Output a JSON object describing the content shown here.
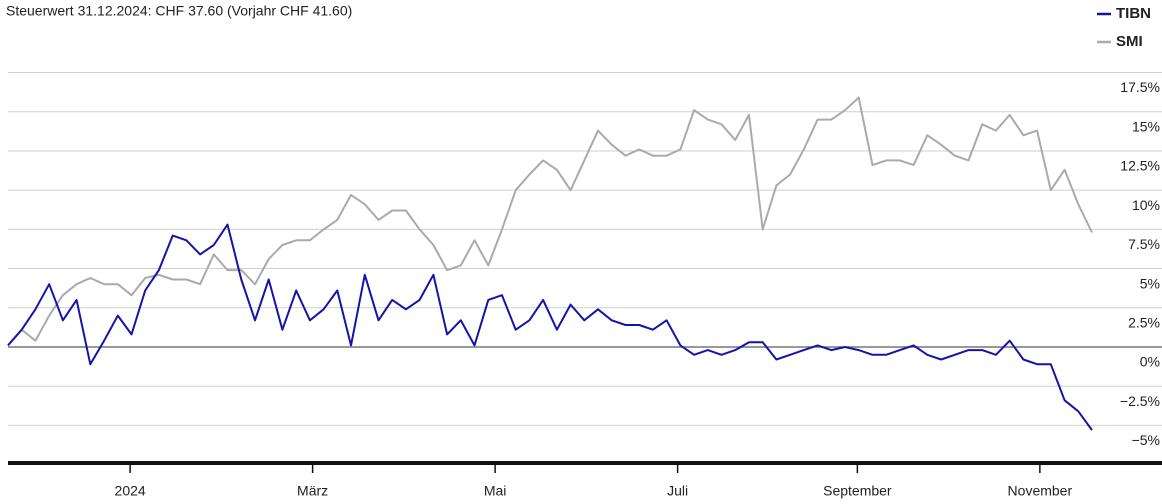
{
  "chart_data": {
    "type": "line",
    "title": "Steuerwert 31.12.2024: CHF 37.60 (Vorjahr CHF 41.60)",
    "xlim": [
      0,
      79
    ],
    "xticks": [
      {
        "value": 8.9,
        "label": "2024"
      },
      {
        "value": 22.2,
        "label": "März"
      },
      {
        "value": 35.5,
        "label": "Mai"
      },
      {
        "value": 48.8,
        "label": "Juli"
      },
      {
        "value": 61.9,
        "label": "September"
      },
      {
        "value": 75.2,
        "label": "November"
      }
    ],
    "ylim": [
      -7.4,
      18.3
    ],
    "yticks": [
      {
        "value": -5,
        "label": "−5%"
      },
      {
        "value": -2.5,
        "label": "−2.5%"
      },
      {
        "value": 0,
        "label": "0%"
      },
      {
        "value": 2.5,
        "label": "2.5%"
      },
      {
        "value": 5,
        "label": "5%"
      },
      {
        "value": 7.5,
        "label": "7.5%"
      },
      {
        "value": 10,
        "label": "10%"
      },
      {
        "value": 12.5,
        "label": "12.5%"
      },
      {
        "value": 15,
        "label": "15%"
      },
      {
        "value": 17.5,
        "label": "17.5%"
      }
    ],
    "grid": true,
    "legend": "top-right",
    "series": [
      {
        "name": "TIBN",
        "color": "#1414a8",
        "values": [
          0.1,
          1.1,
          2.4,
          4.0,
          1.7,
          3.0,
          -1.1,
          0.4,
          2.0,
          0.8,
          3.6,
          4.9,
          7.1,
          6.8,
          5.9,
          6.5,
          7.8,
          4.3,
          1.7,
          4.3,
          1.1,
          3.6,
          1.7,
          2.4,
          3.6,
          0.1,
          4.6,
          1.7,
          3.0,
          2.4,
          3.0,
          4.6,
          0.8,
          1.7,
          0.1,
          3.0,
          3.3,
          1.1,
          1.7,
          3.0,
          1.1,
          2.7,
          1.7,
          2.4,
          1.7,
          1.4,
          1.4,
          1.1,
          1.7,
          0.1,
          -0.5,
          -0.2,
          -0.5,
          -0.2,
          0.3,
          0.3,
          -0.8,
          -0.5,
          -0.2,
          0.1,
          -0.2,
          0,
          -0.2,
          -0.5,
          -0.5,
          -0.2,
          0.1,
          -0.5,
          -0.8,
          -0.5,
          -0.2,
          -0.2,
          -0.5,
          0.4,
          -0.8,
          -1.1,
          -1.1,
          -3.4,
          -4.1,
          -5.3
        ]
      },
      {
        "name": "SMI",
        "color": "#aaaaaa",
        "values": [
          0.1,
          1.1,
          0.4,
          2.0,
          3.3,
          4.0,
          4.4,
          4.0,
          4.0,
          3.3,
          4.4,
          4.6,
          4.3,
          4.3,
          4.0,
          5.9,
          4.9,
          4.9,
          4.0,
          5.6,
          6.5,
          6.8,
          6.8,
          7.5,
          8.1,
          9.7,
          9.1,
          8.1,
          8.7,
          8.7,
          7.5,
          6.5,
          4.9,
          5.2,
          6.8,
          5.2,
          7.5,
          10.0,
          11.0,
          11.9,
          11.3,
          10.0,
          11.9,
          13.8,
          12.9,
          12.2,
          12.6,
          12.2,
          12.2,
          12.6,
          15.1,
          14.5,
          14.2,
          13.2,
          14.8,
          7.5,
          10.3,
          11.0,
          12.6,
          14.5,
          14.5,
          15.1,
          15.9,
          11.6,
          11.9,
          11.9,
          11.6,
          13.5,
          12.9,
          12.2,
          11.9,
          14.2,
          13.8,
          14.8,
          13.5,
          13.8,
          10.0,
          11.3,
          9.1,
          7.3
        ]
      }
    ]
  }
}
